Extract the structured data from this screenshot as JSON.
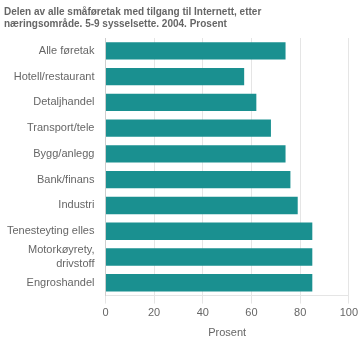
{
  "chart_data": {
    "type": "bar",
    "orientation": "horizontal",
    "title": "Delen av alle småføretak med tilgang til Internett, etter\nnæringsområde. 5-9 sysselsette. 2004. Prosent",
    "categories": [
      "Alle føretak",
      "Hotell/restaurant",
      "Detaljhandel",
      "Transport/tele",
      "Bygg/anlegg",
      "Bank/finans",
      "Industri",
      "Tenesteyting elles",
      "Motorkøyrety,\ndrivstoff",
      "Engroshandel"
    ],
    "values": [
      74,
      57,
      62,
      68,
      74,
      76,
      79,
      85,
      85,
      85
    ],
    "color": "#1a9090",
    "xlabel": "Prosent",
    "xlim": [
      0,
      100
    ],
    "xticks": [
      0,
      20,
      40,
      60,
      80,
      100
    ],
    "grid": true
  }
}
